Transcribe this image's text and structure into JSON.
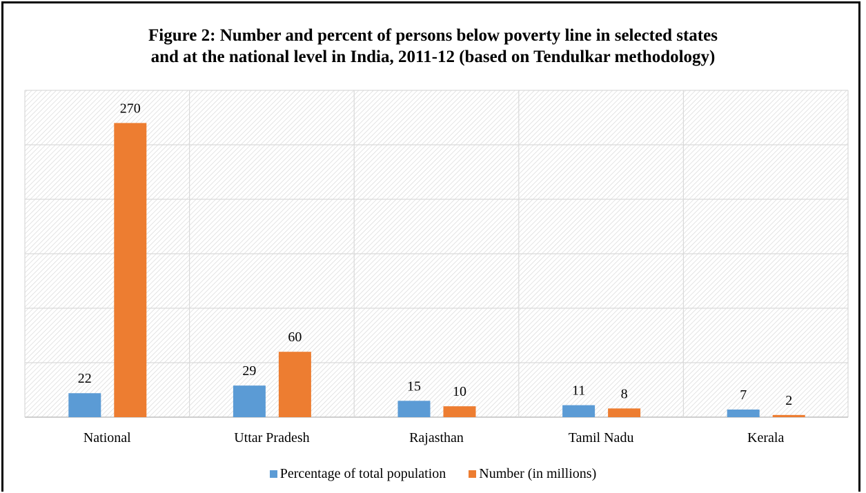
{
  "title_line1": "Figure 2: Number and percent of persons below poverty line in selected states",
  "title_line2": "and at the national level in India, 2011-12 (based on Tendulkar methodology)",
  "legend": {
    "series1": "Percentage of total population",
    "series2": "Number (in millions)"
  },
  "chart_data": {
    "type": "bar",
    "title": "Figure 2: Number and percent of persons below poverty line in selected states and at the national level in India, 2011-12 (based on Tendulkar methodology)",
    "categories": [
      "National",
      "Uttar Pradesh",
      "Rajasthan",
      "Tamil Nadu",
      "Kerala"
    ],
    "series": [
      {
        "name": "Percentage of total population",
        "values": [
          22,
          29,
          15,
          11,
          7
        ],
        "color": "#5B9BD5"
      },
      {
        "name": "Number (in millions)",
        "values": [
          270,
          60,
          10,
          8,
          2
        ],
        "color": "#ED7D31"
      }
    ],
    "ylim": [
      0,
      300
    ],
    "grid": true,
    "y_tick_labels_shown": false,
    "legend_position": "bottom",
    "data_labels": true
  }
}
